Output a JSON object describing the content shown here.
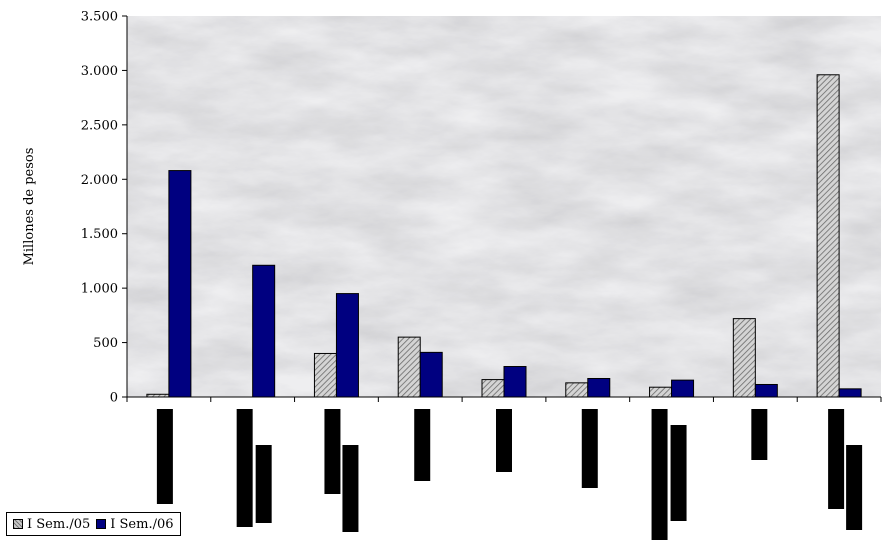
{
  "chart_data": {
    "type": "bar",
    "title": "",
    "xlabel": "",
    "ylabel": "Millones de pesos",
    "ylim": [
      0,
      3500
    ],
    "yticks": [
      0,
      500,
      1000,
      1500,
      2000,
      2500,
      3000,
      3500
    ],
    "ytick_labels": [
      "0",
      "500",
      "1.000",
      "1.500",
      "2.000",
      "2.500",
      "3.000",
      "3.500"
    ],
    "grid": false,
    "legend_position": "bottom-left",
    "categories": [
      "",
      "",
      "",
      "",
      "",
      "",
      "",
      "",
      ""
    ],
    "series": [
      {
        "name": "I Sem./05",
        "color": "#c0c0c0",
        "pattern": "hatched",
        "values": [
          25,
          0,
          400,
          550,
          160,
          130,
          90,
          720,
          2960
        ]
      },
      {
        "name": "I Sem./06",
        "color": "#000080",
        "values": [
          2080,
          1210,
          950,
          410,
          280,
          170,
          155,
          115,
          75
        ]
      }
    ]
  }
}
